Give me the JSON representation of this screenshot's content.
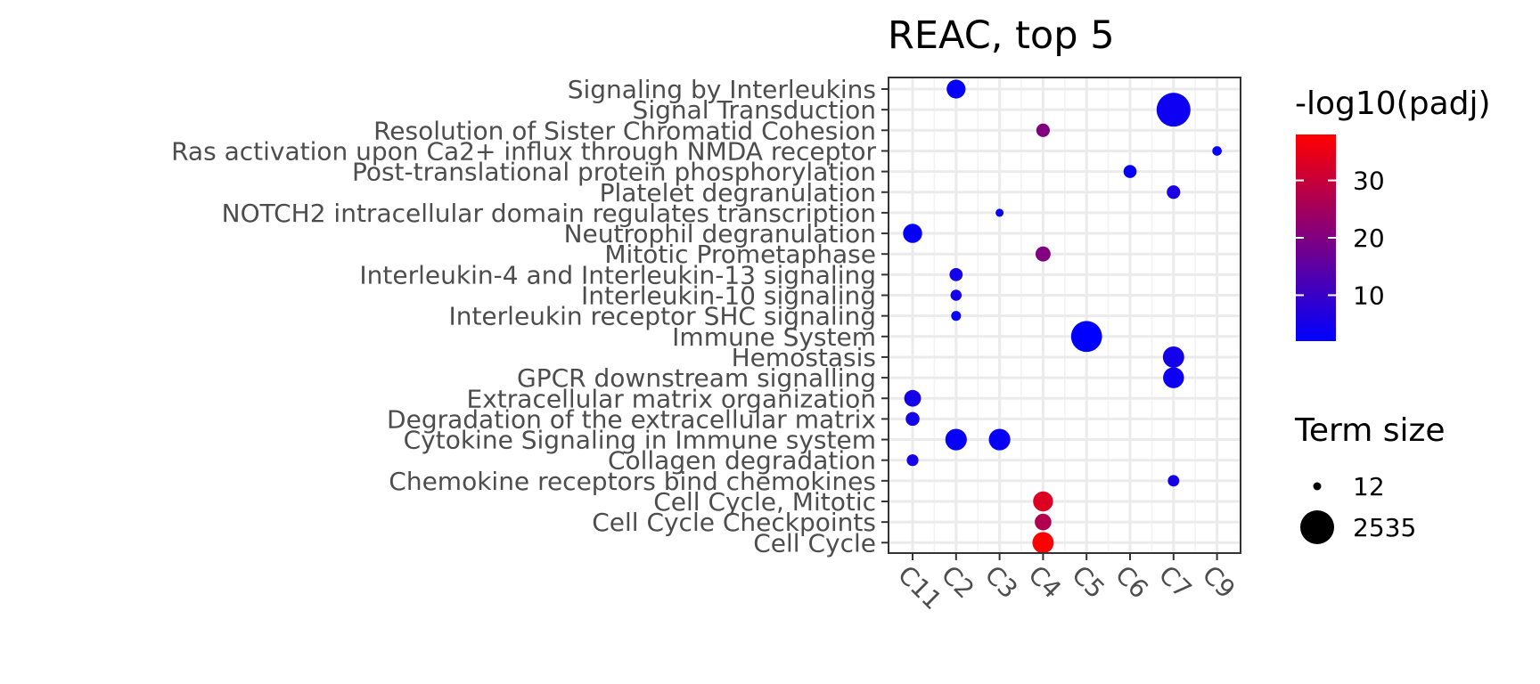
{
  "chart_data": {
    "type": "scatter",
    "title": "REAC, top 5",
    "xlabel": "",
    "ylabel": "",
    "grid": true,
    "x_categories": [
      "C11",
      "C2",
      "C3",
      "C4",
      "C5",
      "C6",
      "C7",
      "C9"
    ],
    "y_categories": [
      "Signaling by Interleukins",
      "Signal Transduction",
      "Resolution of Sister Chromatid Cohesion",
      "Ras activation upon Ca2+ influx through NMDA receptor",
      "Post-translational protein phosphorylation",
      "Platelet degranulation",
      "NOTCH2 intracellular domain regulates transcription",
      "Neutrophil degranulation",
      "Mitotic Prometaphase",
      "Interleukin-4 and Interleukin-13 signaling",
      "Interleukin-10 signaling",
      "Interleukin receptor SHC signaling",
      "Immune System",
      "Hemostasis",
      "GPCR downstream signalling",
      "Extracellular matrix organization",
      "Degradation of the extracellular matrix",
      "Cytokine Signaling in Immune system",
      "Collagen degradation",
      "Chemokine receptors bind chemokines",
      "Cell Cycle, Mitotic",
      "Cell Cycle Checkpoints",
      "Cell Cycle"
    ],
    "points": [
      {
        "term": "Signaling by Interleukins",
        "cluster": "C2",
        "neg_log10_padj": 3,
        "term_size": 460
      },
      {
        "term": "Signal Transduction",
        "cluster": "C7",
        "neg_log10_padj": 4,
        "term_size": 2535
      },
      {
        "term": "Resolution of Sister Chromatid Cohesion",
        "cluster": "C4",
        "neg_log10_padj": 20,
        "term_size": 125
      },
      {
        "term": "Ras activation upon Ca2+ influx through NMDA receptor",
        "cluster": "C9",
        "neg_log10_padj": 3,
        "term_size": 20
      },
      {
        "term": "Post-translational protein phosphorylation",
        "cluster": "C6",
        "neg_log10_padj": 3,
        "term_size": 107
      },
      {
        "term": "Platelet degranulation",
        "cluster": "C7",
        "neg_log10_padj": 6,
        "term_size": 125
      },
      {
        "term": "NOTCH2 intracellular domain regulates transcription",
        "cluster": "C3",
        "neg_log10_padj": 3,
        "term_size": 12
      },
      {
        "term": "Neutrophil degranulation",
        "cluster": "C11",
        "neg_log10_padj": 3,
        "term_size": 480
      },
      {
        "term": "Mitotic Prometaphase",
        "cluster": "C4",
        "neg_log10_padj": 20,
        "term_size": 200
      },
      {
        "term": "Interleukin-4 and Interleukin-13 signaling",
        "cluster": "C2",
        "neg_log10_padj": 5,
        "term_size": 110
      },
      {
        "term": "Interleukin-10 signaling",
        "cluster": "C2",
        "neg_log10_padj": 5,
        "term_size": 48
      },
      {
        "term": "Interleukin receptor SHC signaling",
        "cluster": "C2",
        "neg_log10_padj": 3,
        "term_size": 25
      },
      {
        "term": "Immune System",
        "cluster": "C5",
        "neg_log10_padj": 2,
        "term_size": 2000
      },
      {
        "term": "Hemostasis",
        "cluster": "C7",
        "neg_log10_padj": 5,
        "term_size": 680
      },
      {
        "term": "GPCR downstream signalling",
        "cluster": "C7",
        "neg_log10_padj": 4,
        "term_size": 640
      },
      {
        "term": "Extracellular matrix organization",
        "cluster": "C11",
        "neg_log10_padj": 5,
        "term_size": 300
      },
      {
        "term": "Degradation of the extracellular matrix",
        "cluster": "C11",
        "neg_log10_padj": 5,
        "term_size": 140
      },
      {
        "term": "Cytokine Signaling in Immune system",
        "cluster": "C2",
        "neg_log10_padj": 3,
        "term_size": 700
      },
      {
        "term": "Cytokine Signaling in Immune system",
        "cluster": "C3",
        "neg_log10_padj": 3,
        "term_size": 700
      },
      {
        "term": "Collagen degradation",
        "cluster": "C11",
        "neg_log10_padj": 5,
        "term_size": 64
      },
      {
        "term": "Chemokine receptors bind chemokines",
        "cluster": "C7",
        "neg_log10_padj": 5,
        "term_size": 57
      },
      {
        "term": "Cell Cycle, Mitotic",
        "cluster": "C4",
        "neg_log10_padj": 33,
        "term_size": 550
      },
      {
        "term": "Cell Cycle Checkpoints",
        "cluster": "C4",
        "neg_log10_padj": 27,
        "term_size": 290
      },
      {
        "term": "Cell Cycle",
        "cluster": "C4",
        "neg_log10_padj": 38,
        "term_size": 680
      }
    ],
    "color_legend": {
      "title": "-log10(padj)",
      "ticks": [
        10,
        20,
        30
      ],
      "range": [
        2,
        38
      ],
      "low_color": "#0000FF",
      "high_color": "#FF0000"
    },
    "size_legend": {
      "title": "Term size",
      "entries": [
        12,
        2535
      ]
    }
  }
}
